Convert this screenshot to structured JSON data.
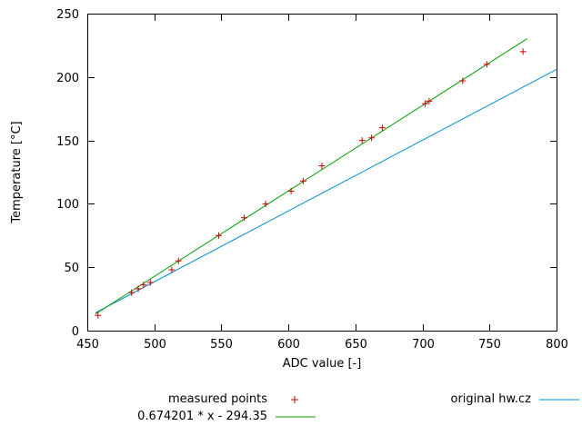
{
  "chart_data": {
    "type": "scatter",
    "title": "",
    "xlabel": "ADC value [-]",
    "ylabel": "Temperature [°C]",
    "xlim": [
      450,
      800
    ],
    "ylim": [
      0,
      250
    ],
    "xticks": [
      450,
      500,
      550,
      600,
      650,
      700,
      750,
      800
    ],
    "yticks": [
      0,
      50,
      100,
      150,
      200,
      250
    ],
    "grid": false,
    "legend_position": "below-plot",
    "series": [
      {
        "name": "measured points",
        "type": "points",
        "marker": "plus",
        "color": "#cc0000",
        "points": [
          [
            458,
            12
          ],
          [
            483,
            30
          ],
          [
            488,
            33
          ],
          [
            492,
            36
          ],
          [
            497,
            38
          ],
          [
            513,
            48
          ],
          [
            518,
            55
          ],
          [
            548,
            75
          ],
          [
            567,
            89
          ],
          [
            583,
            100
          ],
          [
            602,
            110
          ],
          [
            611,
            118
          ],
          [
            625,
            130
          ],
          [
            655,
            150
          ],
          [
            662,
            152
          ],
          [
            670,
            160
          ],
          [
            702,
            179
          ],
          [
            705,
            181
          ],
          [
            730,
            197
          ],
          [
            748,
            210
          ],
          [
            775,
            220
          ]
        ]
      },
      {
        "name": "0.674201 * x - 294.35",
        "type": "linear-fit",
        "color": "#00a000",
        "slope": 0.674201,
        "intercept": -294.35,
        "x_range": [
          456,
          778
        ]
      },
      {
        "name": "original hw.cz",
        "type": "line",
        "color": "#0090d0",
        "points": [
          [
            456,
            14
          ],
          [
            800,
            206
          ]
        ]
      }
    ]
  }
}
